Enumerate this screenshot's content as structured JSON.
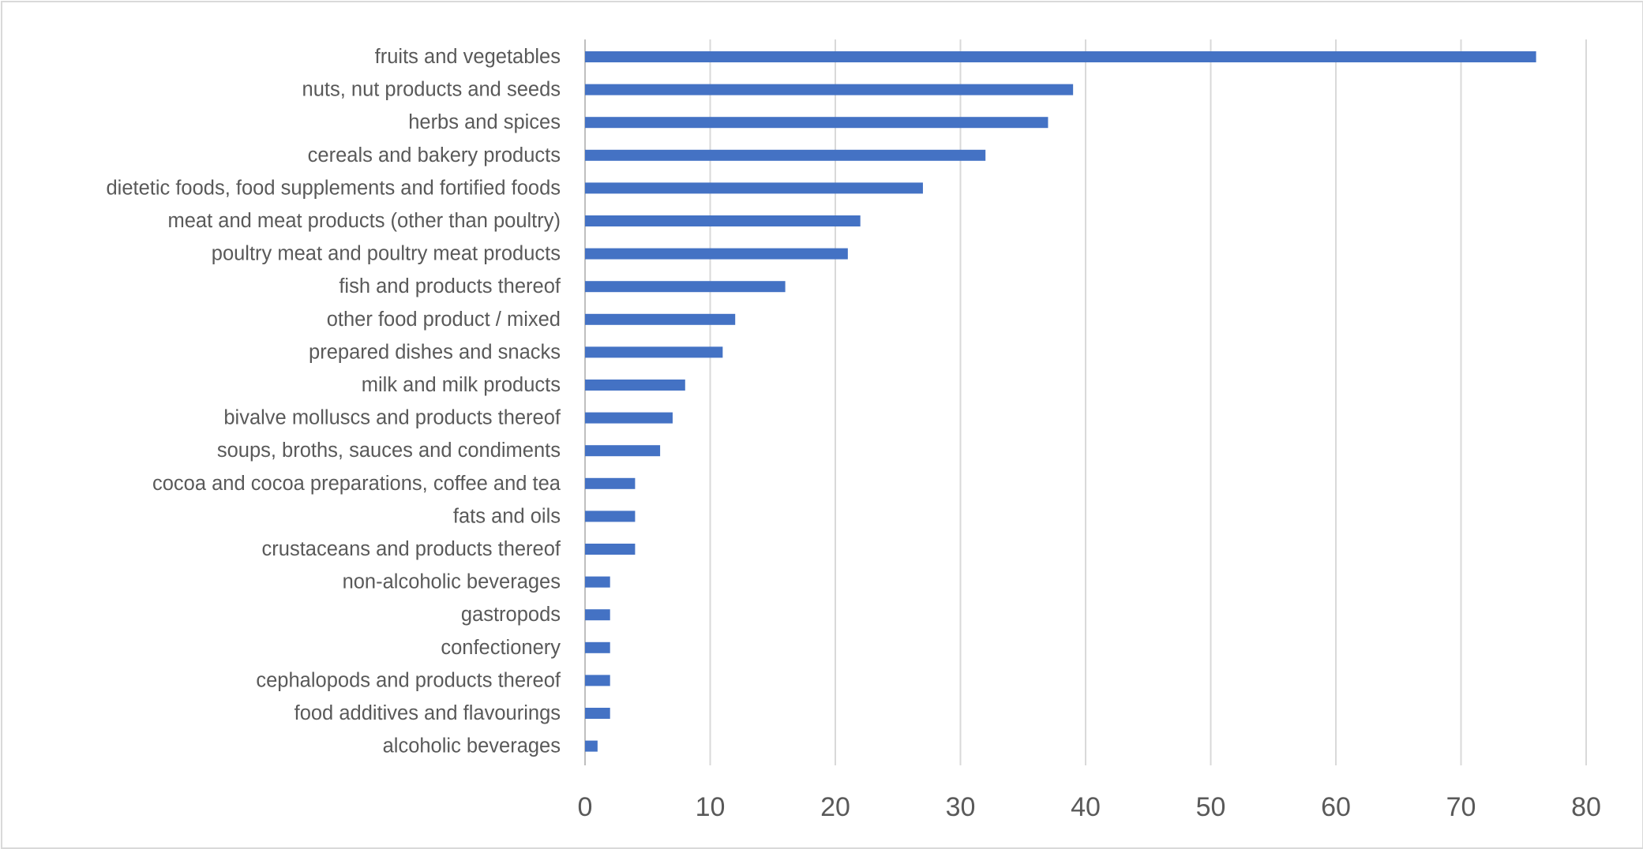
{
  "chart_data": {
    "type": "bar",
    "orientation": "horizontal",
    "bar_color": "#4472C4",
    "gridline_color": "#d9d9d9",
    "text_color": "#595959",
    "grid": true,
    "legend": "none",
    "title": "",
    "xlabel": "",
    "ylabel": "",
    "xlim": [
      0,
      80
    ],
    "x_ticks": [
      "0",
      "10",
      "20",
      "30",
      "40",
      "50",
      "60",
      "70",
      "80"
    ],
    "categories": [
      "fruits and vegetables",
      "nuts, nut products and seeds",
      "herbs and spices",
      "cereals and bakery products",
      "dietetic foods, food supplements and fortified foods",
      "meat and meat products (other than poultry)",
      "poultry meat and poultry meat products",
      "fish and products thereof",
      "other food product / mixed",
      "prepared dishes and snacks",
      "milk and milk products",
      "bivalve molluscs and products thereof",
      "soups, broths, sauces and condiments",
      "cocoa and cocoa preparations, coffee and tea",
      "fats and oils",
      "crustaceans and products thereof",
      "non-alcoholic beverages",
      "gastropods",
      "confectionery",
      "cephalopods and products thereof",
      "food additives and flavourings",
      "alcoholic beverages"
    ],
    "values": [
      76,
      39,
      37,
      32,
      27,
      22,
      21,
      16,
      12,
      11,
      8,
      7,
      6,
      4,
      4,
      4,
      2,
      2,
      2,
      2,
      2,
      1
    ]
  }
}
